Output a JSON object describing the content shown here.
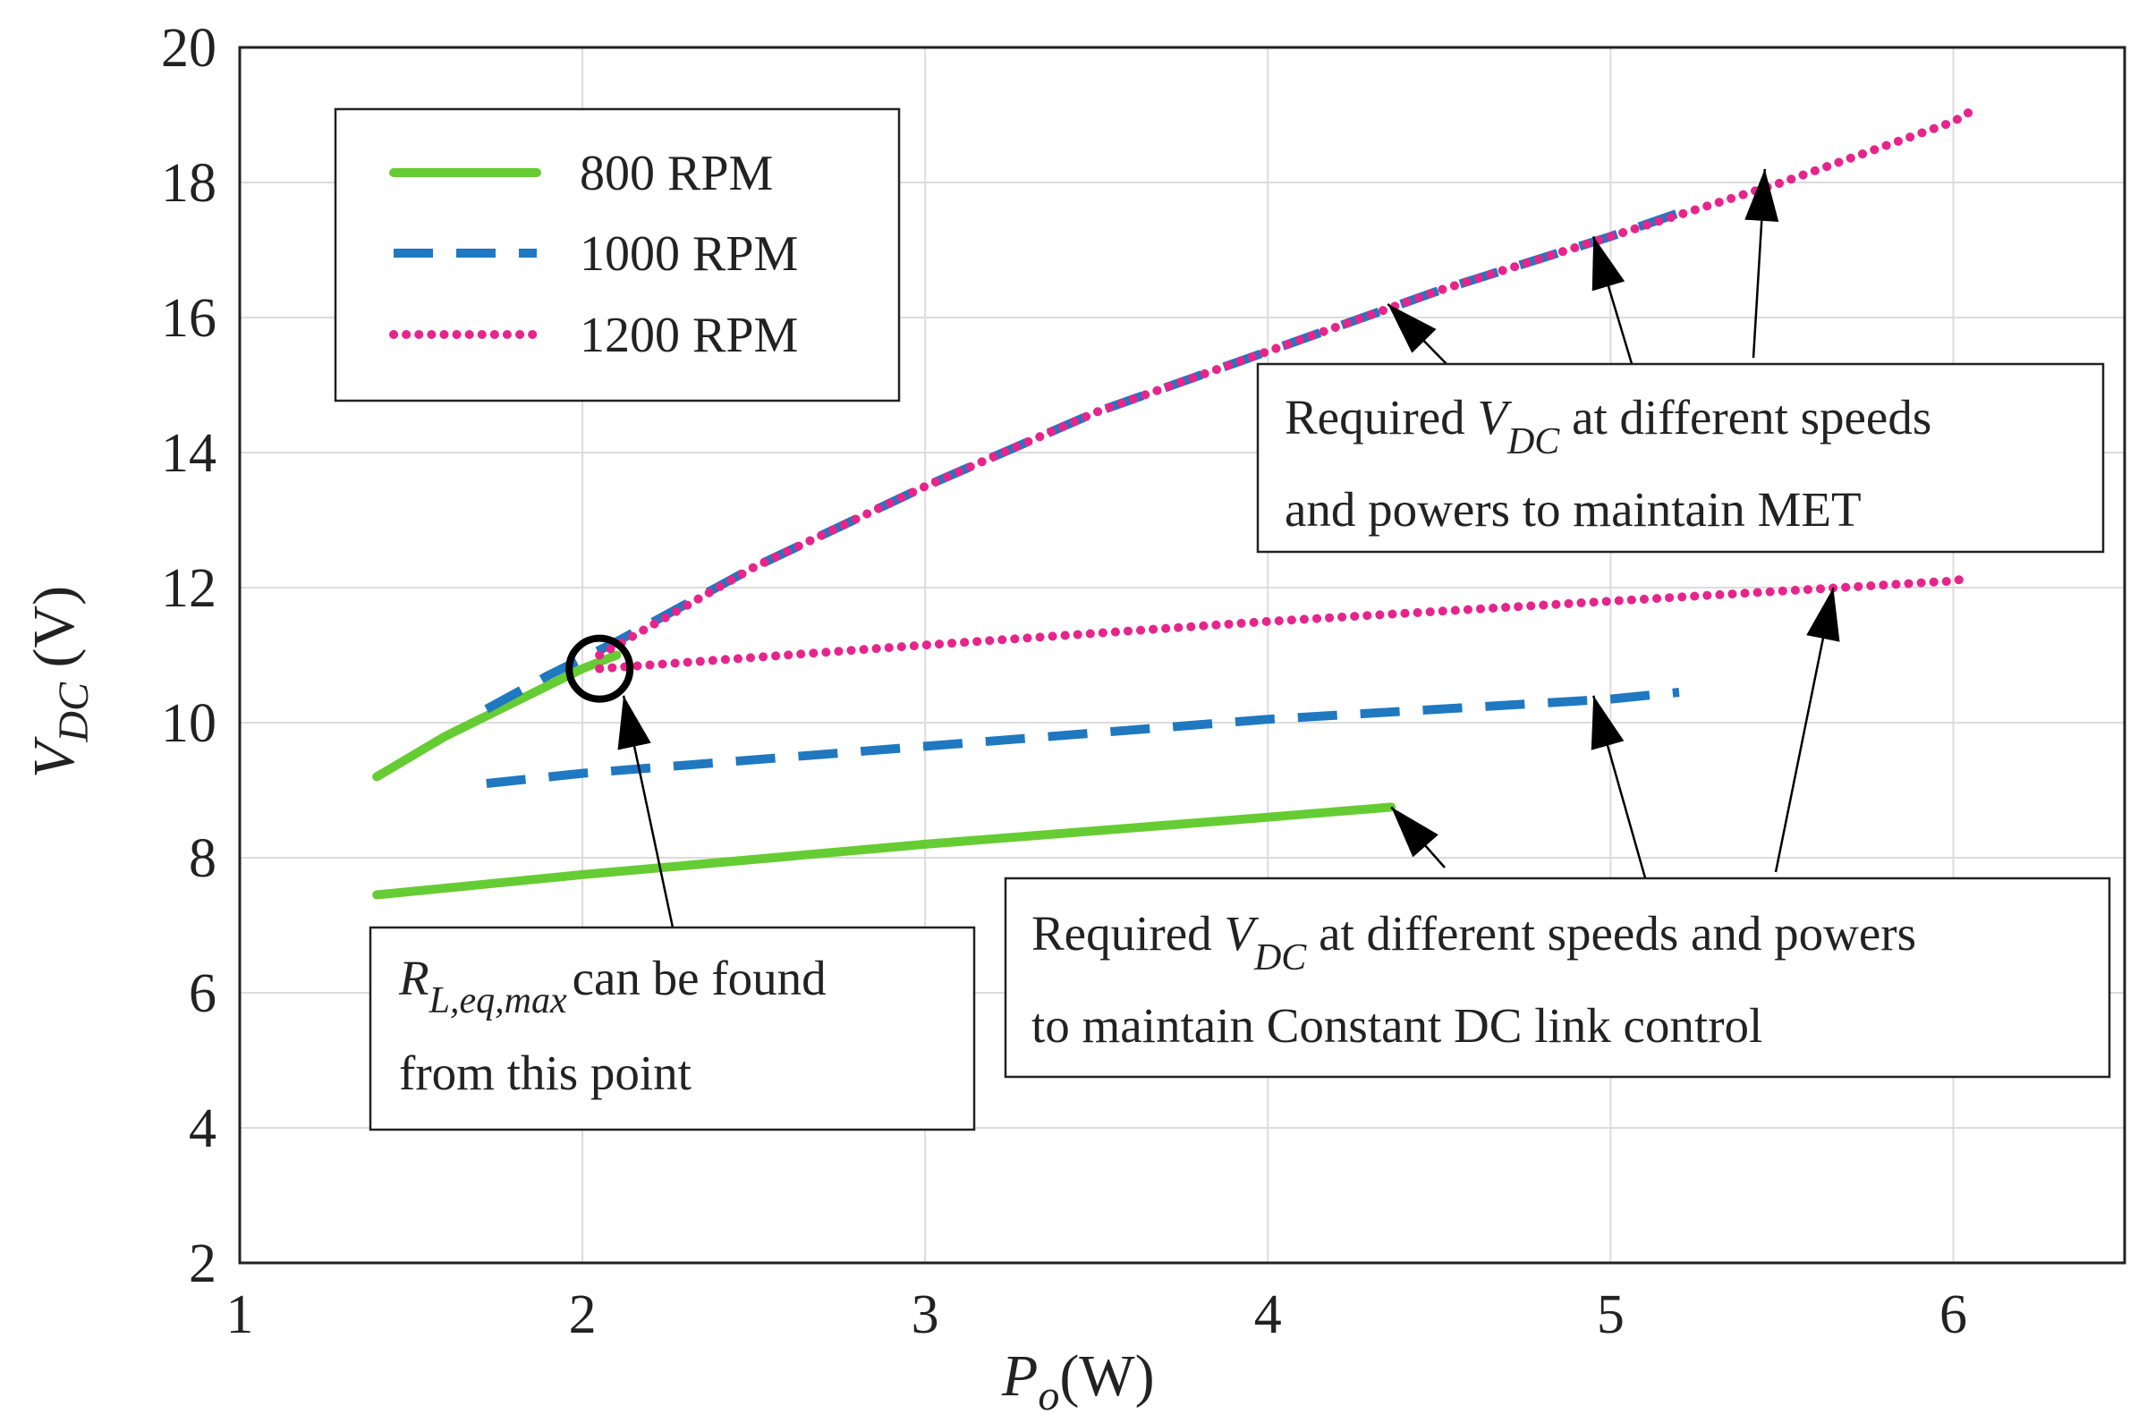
{
  "chart_data": {
    "type": "line",
    "title": "",
    "xlabel": {
      "symbol": "P",
      "sub": "o",
      "unit": "(W)"
    },
    "ylabel": {
      "symbol": "V",
      "sub": "DC",
      "unit": " (V)"
    },
    "xlim": [
      1,
      6.5
    ],
    "ylim": [
      2,
      20
    ],
    "xticks": [
      1,
      2,
      3,
      4,
      5,
      6
    ],
    "yticks": [
      2,
      4,
      6,
      8,
      10,
      12,
      14,
      16,
      18,
      20
    ],
    "grid": true,
    "legend_position": "top-left",
    "series": [
      {
        "name": "800 RPM",
        "color": "#66cc33",
        "style": "solid",
        "met_curve": {
          "x": [
            1.4,
            1.6,
            1.8,
            2.0,
            2.1
          ],
          "y": [
            9.2,
            9.8,
            10.3,
            10.8,
            11.0
          ]
        },
        "constant_dc": {
          "x": [
            1.4,
            2.0,
            3.0,
            4.0,
            4.36
          ],
          "y": [
            7.45,
            7.75,
            8.2,
            8.6,
            8.75
          ]
        }
      },
      {
        "name": "1000 RPM",
        "color": "#1f78c0",
        "style": "dashed",
        "met_curve": {
          "x": [
            1.72,
            1.9,
            2.1,
            2.5,
            3.0,
            3.5,
            4.0,
            4.5,
            5.0,
            5.2
          ],
          "y": [
            10.2,
            10.7,
            11.2,
            12.3,
            13.5,
            14.6,
            15.5,
            16.4,
            17.2,
            17.55
          ]
        },
        "constant_dc": {
          "x": [
            1.72,
            2.0,
            3.0,
            4.0,
            5.0,
            5.2
          ],
          "y": [
            9.1,
            9.25,
            9.65,
            10.05,
            10.35,
            10.45
          ]
        }
      },
      {
        "name": "1200 RPM",
        "color": "#e6258c",
        "style": "dotted",
        "met_curve": {
          "x": [
            2.05,
            2.5,
            3.0,
            3.5,
            4.0,
            4.5,
            5.0,
            5.5,
            6.0,
            6.05
          ],
          "y": [
            11.0,
            12.3,
            13.5,
            14.6,
            15.5,
            16.4,
            17.2,
            18.0,
            18.9,
            19.05
          ]
        },
        "constant_dc": {
          "x": [
            2.05,
            3.0,
            4.0,
            5.0,
            6.0,
            6.05
          ],
          "y": [
            10.8,
            11.15,
            11.5,
            11.8,
            12.1,
            12.15
          ]
        }
      }
    ],
    "marker": {
      "type": "circle",
      "x": 2.05,
      "y": 10.8
    },
    "annotations": [
      {
        "id": "met",
        "line1": [
          "Required ",
          "V",
          "DC",
          " at different speeds"
        ],
        "line2": "and powers to maintain MET",
        "points_to": [
          [
            4.35,
            16.2
          ],
          [
            4.95,
            17.2
          ],
          [
            5.45,
            18.2
          ]
        ]
      },
      {
        "id": "constant-dc",
        "line1": [
          "Required ",
          "V",
          "DC",
          " at different speeds and  powers"
        ],
        "line2": "to maintain Constant DC link control",
        "points_to": [
          [
            4.36,
            8.75
          ],
          [
            4.95,
            10.4
          ],
          [
            5.65,
            12.0
          ]
        ]
      },
      {
        "id": "rl-eq-max",
        "line1": [
          "R",
          "L,eq,max",
          "can be found"
        ],
        "line2": "from this point",
        "points_to": [
          [
            2.12,
            10.4
          ]
        ]
      }
    ]
  }
}
